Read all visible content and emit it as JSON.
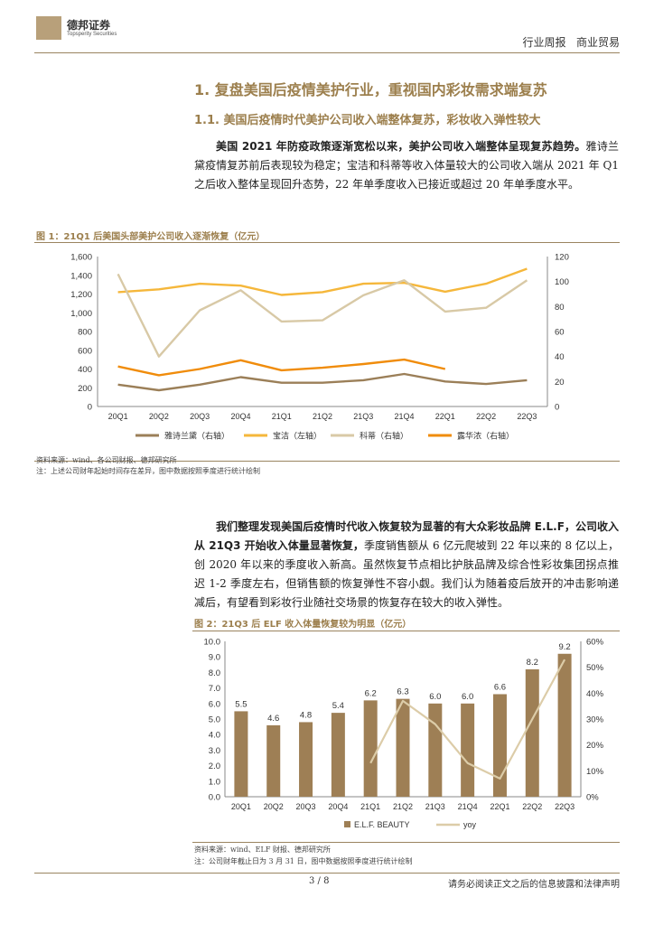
{
  "header": {
    "company": "德邦证券",
    "company_en": "Topsperity Securities",
    "report_type": "行业周报",
    "sector": "商业贸易"
  },
  "section": {
    "h1": "1. 复盘美国后疫情美护行业，重视国内彩妆需求端复苏",
    "h2": "1.1. 美国后疫情时代美护公司收入端整体复苏，彩妆收入弹性较大"
  },
  "para1": {
    "bold": "美国 2021 年防疫政策逐渐宽松以来，美护公司收入端整体呈现复苏趋势。",
    "rest": "雅诗兰黛疫情复苏前后表现较为稳定；宝洁和科蒂等收入体量较大的公司收入端从 2021 年 Q1 之后收入整体呈现回升态势，22 年单季度收入已接近或超过 20 年单季度水平。"
  },
  "fig1": {
    "title": "图 1：21Q1 后美国头部美护公司收入逐渐恢复（亿元）",
    "source": "资料来源：wind、各公司财报、德邦研究所",
    "note": "注：上述公司财年起始时间存在差异，图中数据按照季度进行统计绘制"
  },
  "para2": {
    "bold": "我们整理发现美国后疫情时代收入恢复较为显著的有大众彩妆品牌 E.L.F，公司收入从 21Q3 开始收入体量显著恢复，",
    "rest": "季度销售额从 6 亿元爬坡到 22 年以来的 8 亿以上，创 2020 年以来的季度收入新高。虽然恢复节点相比护肤品牌及综合性彩妆集团拐点推迟 1-2 季度左右，但销售额的恢复弹性不容小觑。我们认为随着疫后放开的冲击影响递减后，有望看到彩妆行业随社交场景的恢复存在较大的收入弹性。"
  },
  "fig2": {
    "title": "图 2：21Q3 后 ELF 收入体量恢复较为明显（亿元）",
    "source": "资料来源：wind、ELF 财报、德邦研究所",
    "note": "注：公司财年截止日为 3 月 31 日，图中数据按照季度进行统计绘制"
  },
  "footer": {
    "page": "3 / 8",
    "disclaimer": "请务必阅读正文之后的信息披露和法律声明"
  },
  "chart_data": [
    {
      "type": "line",
      "categories": [
        "20Q1",
        "20Q2",
        "20Q3",
        "20Q4",
        "21Q1",
        "21Q2",
        "21Q3",
        "21Q4",
        "22Q1",
        "22Q2",
        "22Q3"
      ],
      "ylim_left": [
        0,
        1600
      ],
      "yticks_left": [
        "0",
        "200",
        "400",
        "600",
        "800",
        "1,000",
        "1,200",
        "1,400",
        "1,600"
      ],
      "ylim_right": [
        0,
        120
      ],
      "yticks_right": [
        "0",
        "20",
        "40",
        "60",
        "80",
        "100",
        "120"
      ],
      "series": [
        {
          "name": "雅诗兰黛（右轴）",
          "axis": "right",
          "color": "#9b7f58",
          "values": [
            17.5,
            13,
            17.5,
            23.5,
            19,
            19,
            21,
            26,
            20,
            18,
            21
          ]
        },
        {
          "name": "宝洁（左轴）",
          "axis": "left",
          "color": "#f5b73b",
          "values": [
            1220,
            1250,
            1310,
            1290,
            1190,
            1220,
            1310,
            1320,
            1225,
            1310,
            1470
          ]
        },
        {
          "name": "科蒂（右轴）",
          "axis": "right",
          "color": "#d8c9a6",
          "values": [
            106,
            40,
            77,
            93,
            68,
            69,
            89,
            101,
            76,
            79,
            101
          ]
        },
        {
          "name": "露华浓（右轴）",
          "axis": "right",
          "color": "#f08c0b",
          "values": [
            32,
            25,
            30,
            37,
            29,
            31,
            34,
            37.5,
            30,
            null,
            null
          ]
        }
      ]
    },
    {
      "type": "bar",
      "categories": [
        "20Q1",
        "20Q2",
        "20Q3",
        "20Q4",
        "21Q1",
        "21Q2",
        "21Q3",
        "21Q4",
        "22Q1",
        "22Q2",
        "22Q3"
      ],
      "ylim_left": [
        0,
        10
      ],
      "yticks_left": [
        "0.0",
        "1.0",
        "2.0",
        "3.0",
        "4.0",
        "5.0",
        "6.0",
        "7.0",
        "8.0",
        "9.0",
        "10.0"
      ],
      "ylim_right": [
        0,
        60
      ],
      "yticks_right": [
        "0%",
        "10%",
        "20%",
        "30%",
        "40%",
        "50%",
        "60%"
      ],
      "series": [
        {
          "name": "E.L.F. BEAUTY",
          "axis": "left",
          "color": "#9e7f55",
          "values": [
            5.5,
            4.6,
            4.8,
            5.4,
            6.2,
            6.3,
            6.0,
            6.0,
            6.6,
            8.2,
            9.2
          ],
          "labels": [
            "5.5",
            "4.6",
            "4.8",
            "5.4",
            "6.2",
            "6.3",
            "6.0",
            "6.0",
            "6.6",
            "8.2",
            "9.2"
          ]
        },
        {
          "name": "yoy",
          "axis": "right",
          "color": "#dccca8",
          "values": [
            null,
            null,
            null,
            null,
            13,
            37,
            28,
            13,
            7,
            30,
            53
          ]
        }
      ]
    }
  ]
}
